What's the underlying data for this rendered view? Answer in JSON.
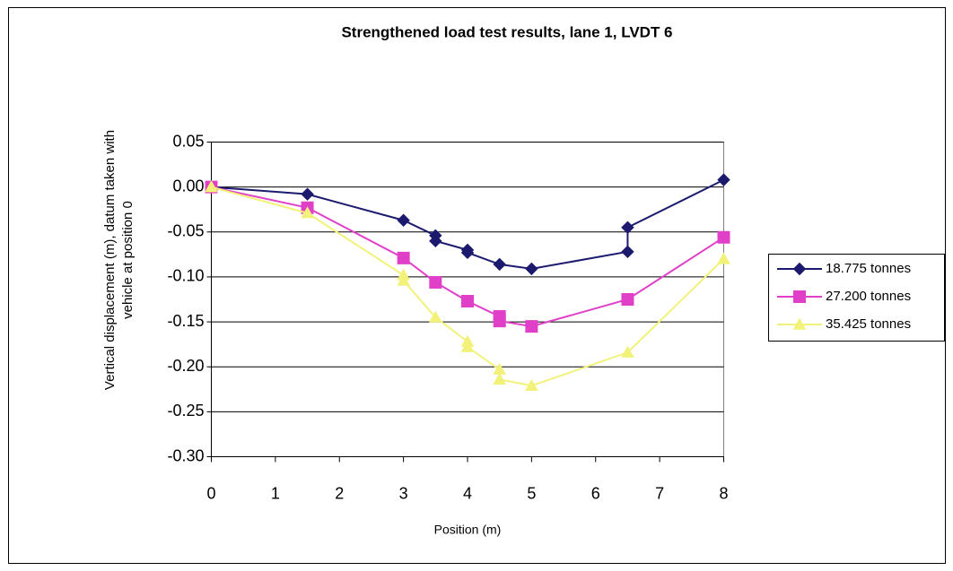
{
  "chart_data": {
    "type": "line",
    "title": "Strengthened load test results, lane 1, LVDT 6",
    "x_label": "Position (m)",
    "y_label": "Vertical displacement (m), datum taken with vehicle at position 0",
    "xlim": [
      0,
      8
    ],
    "xticks": [
      0,
      1,
      2,
      3,
      4,
      5,
      6,
      7,
      8
    ],
    "ylim": [
      -0.3,
      0.05
    ],
    "yticks": [
      0.05,
      {
        "value": 0,
        "label": "0.00"
      },
      -0.05,
      {
        "value": -0.1,
        "label": "-0.10"
      },
      -0.15,
      {
        "value": -0.2,
        "label": "-0.20"
      },
      -0.25,
      {
        "value": -0.3,
        "label": "-0.30"
      }
    ],
    "grid": true,
    "legend": "right",
    "series": [
      {
        "name": "18.775 tonnes",
        "color": "#1c1a6e",
        "marker": "diamond",
        "x": [
          0,
          1.5,
          3,
          3.5,
          3.5,
          4,
          4,
          4.5,
          5,
          6.5,
          6.5,
          8
        ],
        "values": [
          0,
          -0.008,
          -0.037,
          -0.054,
          -0.06,
          -0.07,
          -0.073,
          -0.086,
          -0.091,
          -0.072,
          -0.045,
          0.008
        ]
      },
      {
        "name": "27.200 tonnes",
        "color": "#e040c8",
        "marker": "square",
        "x": [
          0,
          1.5,
          3,
          3.5,
          4,
          4.5,
          4.5,
          5,
          6.5,
          8
        ],
        "values": [
          0,
          -0.023,
          -0.079,
          -0.106,
          -0.127,
          -0.144,
          -0.149,
          -0.155,
          -0.125,
          -0.056
        ]
      },
      {
        "name": "35.425 tonnes",
        "color": "#f2f27a",
        "marker": "triangle",
        "x": [
          0,
          1.5,
          3,
          3,
          3.5,
          4,
          4,
          4.5,
          4.5,
          5,
          6.5,
          8
        ],
        "values": [
          0,
          -0.029,
          -0.098,
          -0.104,
          -0.145,
          -0.172,
          -0.178,
          -0.203,
          -0.214,
          -0.221,
          -0.184,
          -0.08
        ]
      }
    ]
  }
}
